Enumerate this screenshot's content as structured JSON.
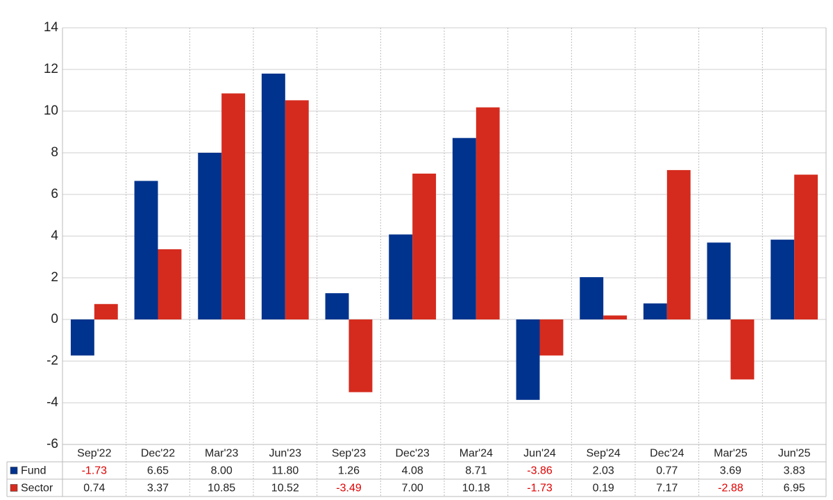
{
  "chart_data": {
    "type": "bar",
    "categories": [
      "Sep'22",
      "Dec'22",
      "Mar'23",
      "Jun'23",
      "Sep'23",
      "Dec'23",
      "Mar'24",
      "Jun'24",
      "Sep'24",
      "Dec'24",
      "Mar'25",
      "Jun'25"
    ],
    "series": [
      {
        "name": "Fund",
        "color": "#00338d",
        "values": [
          -1.73,
          6.65,
          8.0,
          11.8,
          1.26,
          4.08,
          8.71,
          -3.86,
          2.03,
          0.77,
          3.69,
          3.83
        ],
        "value_labels": [
          "-1.73",
          "6.65",
          "8.00",
          "11.80",
          "1.26",
          "4.08",
          "8.71",
          "-3.86",
          "2.03",
          "0.77",
          "3.69",
          "3.83"
        ]
      },
      {
        "name": "Sector",
        "color": "#d52b1e",
        "values": [
          0.74,
          3.37,
          10.85,
          10.52,
          -3.49,
          7.0,
          10.18,
          -1.73,
          0.19,
          7.17,
          -2.88,
          6.95
        ],
        "value_labels": [
          "0.74",
          "3.37",
          "10.85",
          "10.52",
          "-3.49",
          "7.00",
          "10.18",
          "-1.73",
          "0.19",
          "7.17",
          "-2.88",
          "6.95"
        ]
      }
    ],
    "ylim": [
      -6,
      14
    ],
    "yticks": [
      -6,
      -4,
      -2,
      0,
      2,
      4,
      6,
      8,
      10,
      12,
      14
    ],
    "grid": true,
    "negative_label_color": "#e00000"
  }
}
